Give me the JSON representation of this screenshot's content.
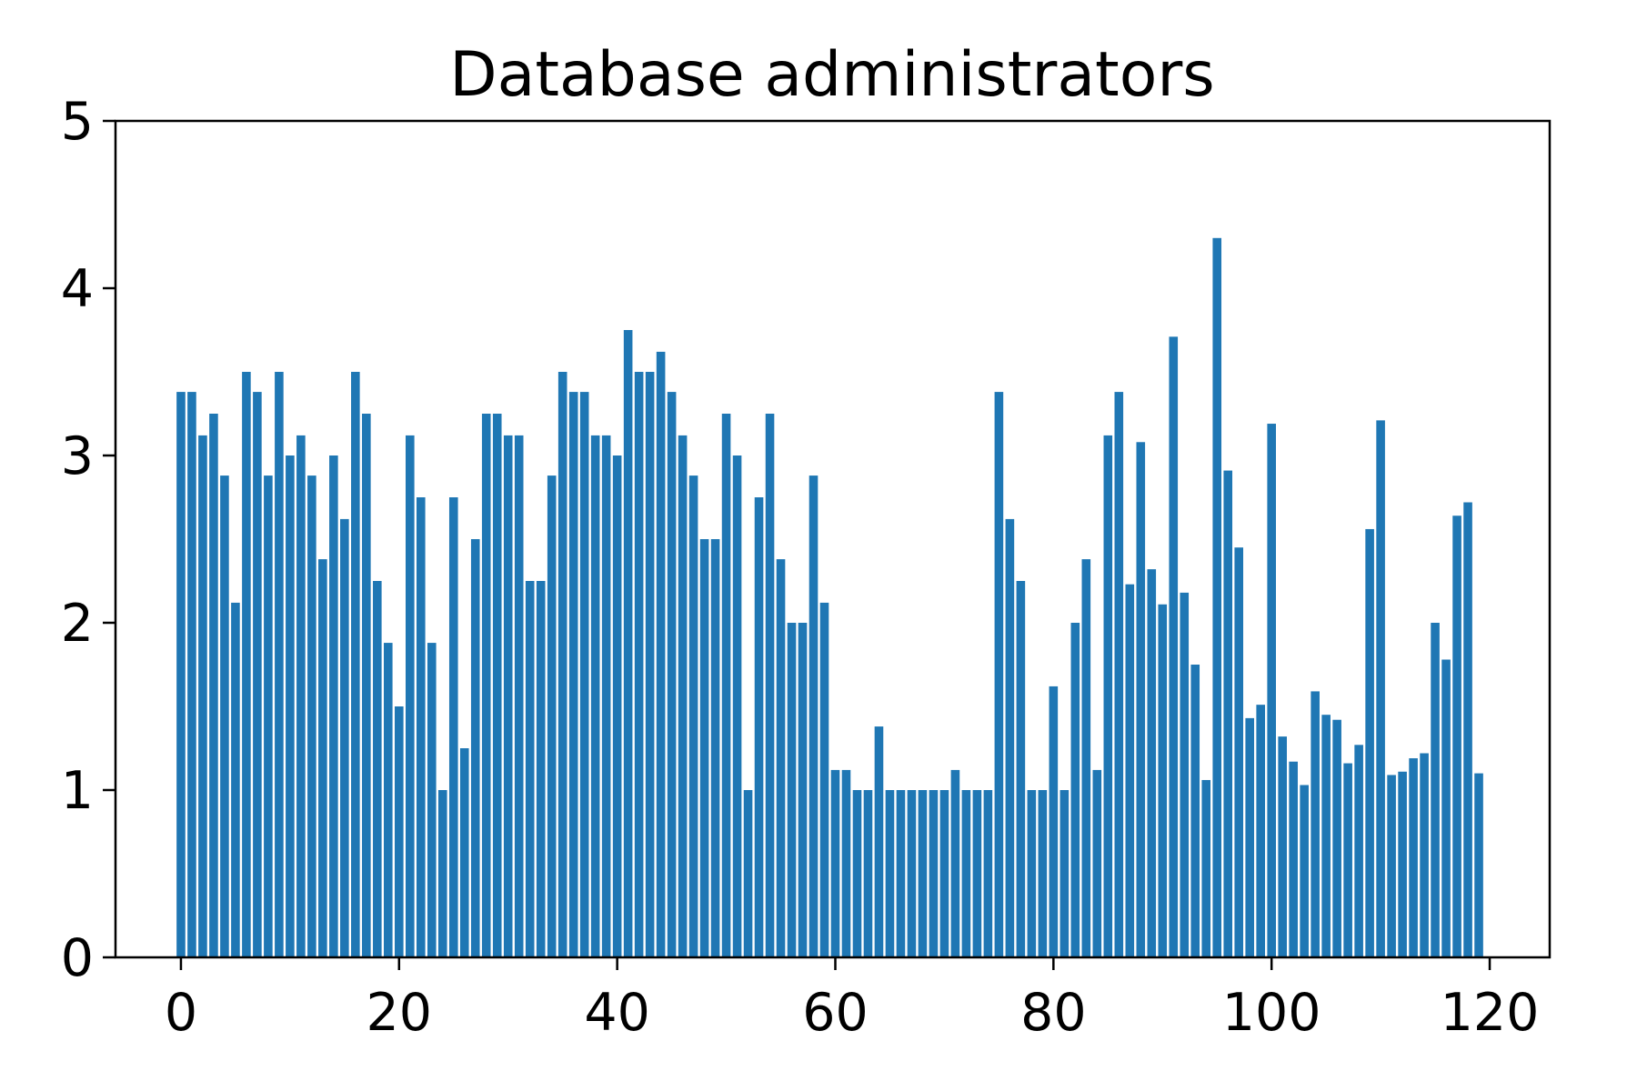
{
  "chart_data": {
    "type": "bar",
    "title": "Database administrators",
    "xlabel": "",
    "ylabel": "",
    "xlim": [
      -6,
      125.5
    ],
    "ylim": [
      0,
      5
    ],
    "xticks": [
      0,
      20,
      40,
      60,
      80,
      100,
      120
    ],
    "yticks": [
      0,
      1,
      2,
      3,
      4,
      5
    ],
    "grid": false,
    "bar_color": "#1f77b4",
    "x": [
      0,
      1,
      2,
      3,
      4,
      5,
      6,
      7,
      8,
      9,
      10,
      11,
      12,
      13,
      14,
      15,
      16,
      17,
      18,
      19,
      20,
      21,
      22,
      23,
      24,
      25,
      26,
      27,
      28,
      29,
      30,
      31,
      32,
      33,
      34,
      35,
      36,
      37,
      38,
      39,
      40,
      41,
      42,
      43,
      44,
      45,
      46,
      47,
      48,
      49,
      50,
      51,
      52,
      53,
      54,
      55,
      56,
      57,
      58,
      59,
      60,
      61,
      62,
      63,
      64,
      65,
      66,
      67,
      68,
      69,
      70,
      71,
      72,
      73,
      74,
      75,
      76,
      77,
      78,
      79,
      80,
      81,
      82,
      83,
      84,
      85,
      86,
      87,
      88,
      89,
      90,
      91,
      92,
      93,
      94,
      95,
      96,
      97,
      98,
      99,
      100,
      101,
      102,
      103,
      104,
      105,
      106,
      107,
      108,
      109,
      110,
      111,
      112,
      113,
      114,
      115,
      116,
      117,
      118,
      119
    ],
    "values": [
      3.38,
      3.38,
      3.12,
      3.25,
      2.88,
      2.12,
      3.5,
      3.38,
      2.88,
      3.5,
      3.0,
      3.12,
      2.88,
      2.38,
      3.0,
      2.62,
      3.5,
      3.25,
      2.25,
      1.88,
      1.5,
      3.12,
      2.75,
      1.88,
      1.0,
      2.75,
      1.25,
      2.5,
      3.25,
      3.25,
      3.12,
      3.12,
      2.25,
      2.25,
      2.88,
      3.5,
      3.38,
      3.38,
      3.12,
      3.12,
      3.0,
      3.75,
      3.5,
      3.5,
      3.62,
      3.38,
      3.12,
      2.88,
      2.5,
      2.5,
      3.25,
      3.0,
      1.0,
      2.75,
      3.25,
      2.38,
      2.0,
      2.0,
      2.88,
      2.12,
      1.12,
      1.12,
      1.0,
      1.0,
      1.38,
      1.0,
      1.0,
      1.0,
      1.0,
      1.0,
      1.0,
      1.12,
      1.0,
      1.0,
      1.0,
      3.38,
      2.62,
      2.25,
      1.0,
      1.0,
      1.62,
      1.0,
      2.0,
      2.38,
      1.12,
      3.12,
      3.38,
      2.23,
      3.08,
      2.32,
      2.11,
      3.71,
      2.18,
      1.75,
      1.06,
      4.3,
      2.91,
      2.45,
      1.43,
      1.51,
      3.19,
      1.32,
      1.17,
      1.03,
      1.59,
      1.45,
      1.42,
      1.16,
      1.27,
      2.56,
      3.21,
      1.09,
      1.11,
      1.19,
      1.22,
      2.0,
      1.78,
      2.64,
      2.72,
      1.1
    ]
  }
}
